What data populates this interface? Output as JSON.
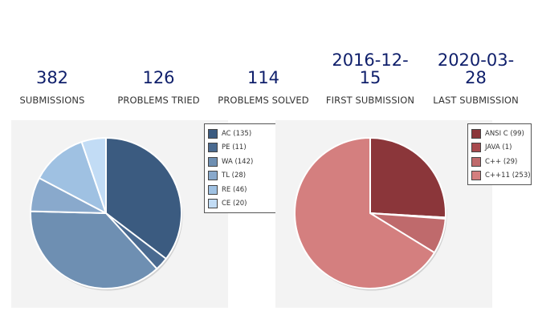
{
  "stats": [
    {
      "value": "382",
      "label": "SUBMISSIONS"
    },
    {
      "value": "126",
      "label": "PROBLEMS TRIED"
    },
    {
      "value": "114",
      "label": "PROBLEMS SOLVED"
    },
    {
      "value": "2016-12-15",
      "value_lines": [
        "2016-12-",
        "15"
      ],
      "label": "FIRST SUBMISSION"
    },
    {
      "value": "2020-03-28",
      "value_lines": [
        "2020-03-",
        "28"
      ],
      "label": "LAST SUBMISSION"
    }
  ],
  "chart_data": [
    {
      "type": "pie",
      "title": "",
      "slices": [
        {
          "label": "AC (135)",
          "name": "AC",
          "value": 135,
          "color": "#3b5b80"
        },
        {
          "label": "PE (11)",
          "name": "PE",
          "value": 11,
          "color": "#4a6a90"
        },
        {
          "label": "WA (142)",
          "name": "WA",
          "value": 142,
          "color": "#6e8fb2"
        },
        {
          "label": "TL (28)",
          "name": "TL",
          "value": 28,
          "color": "#89a9cc"
        },
        {
          "label": "RE (46)",
          "name": "RE",
          "value": 46,
          "color": "#9fc1e2"
        },
        {
          "label": "CE (20)",
          "name": "CE",
          "value": 20,
          "color": "#c2dcf5"
        }
      ],
      "legend_position": "top-right"
    },
    {
      "type": "pie",
      "title": "",
      "slices": [
        {
          "label": "ANSI C (99)",
          "name": "ANSI C",
          "value": 99,
          "color": "#8b363a"
        },
        {
          "label": "JAVA (1)",
          "name": "JAVA",
          "value": 1,
          "color": "#a84a4e"
        },
        {
          "label": "C++ (29)",
          "name": "C++",
          "value": 29,
          "color": "#bf6a6c"
        },
        {
          "label": "C++11 (253)",
          "name": "C++11",
          "value": 253,
          "color": "#d47f7f"
        }
      ],
      "legend_position": "top-right"
    }
  ]
}
